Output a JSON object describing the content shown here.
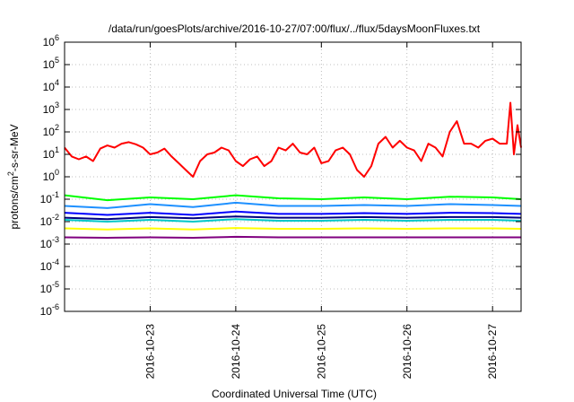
{
  "chart_data": {
    "type": "line",
    "title": "/data/run/goesPlots/archive/2016-10-27/07:00/flux/../flux/5daysMoonFluxes.txt",
    "xlabel": "Coordinated Universal Time (UTC)",
    "ylabel": {
      "prefix": "protons/cm",
      "sup": "2",
      "suffix": "-s-sr-MeV"
    },
    "yscale": "log",
    "ylim": [
      1e-06,
      1000000.0
    ],
    "xlim": [
      "2016-10-22T00:00",
      "2016-10-27T08:00"
    ],
    "grid": true,
    "legend": "none",
    "y_ticks": [
      {
        "value": 1e-06,
        "base": "10",
        "exp": "-6"
      },
      {
        "value": 1e-05,
        "base": "10",
        "exp": "-5"
      },
      {
        "value": 0.0001,
        "base": "10",
        "exp": "-4"
      },
      {
        "value": 0.001,
        "base": "10",
        "exp": "-3"
      },
      {
        "value": 0.01,
        "base": "10",
        "exp": "-2"
      },
      {
        "value": 0.1,
        "base": "10",
        "exp": "-1"
      },
      {
        "value": 1,
        "base": "10",
        "exp": "0"
      },
      {
        "value": 10,
        "base": "10",
        "exp": "1"
      },
      {
        "value": 100,
        "base": "10",
        "exp": "2"
      },
      {
        "value": 1000,
        "base": "10",
        "exp": "3"
      },
      {
        "value": 10000,
        "base": "10",
        "exp": "4"
      },
      {
        "value": 100000,
        "base": "10",
        "exp": "5"
      },
      {
        "value": 1000000,
        "base": "10",
        "exp": "6"
      }
    ],
    "x_ticks": [
      "2016-10-23",
      "2016-10-24",
      "2016-10-25",
      "2016-10-26",
      "2016-10-27"
    ],
    "series": [
      {
        "color": "#ff0000",
        "x": [
          "2016-10-22T00:00",
          "2016-10-22T02:00",
          "2016-10-22T04:00",
          "2016-10-22T06:00",
          "2016-10-22T08:00",
          "2016-10-22T10:00",
          "2016-10-22T12:00",
          "2016-10-22T14:00",
          "2016-10-22T16:00",
          "2016-10-22T18:00",
          "2016-10-22T20:00",
          "2016-10-22T22:00",
          "2016-10-23T00:00",
          "2016-10-23T02:00",
          "2016-10-23T04:00",
          "2016-10-23T06:00",
          "2016-10-23T08:00",
          "2016-10-23T10:00",
          "2016-10-23T12:00",
          "2016-10-23T14:00",
          "2016-10-23T16:00",
          "2016-10-23T18:00",
          "2016-10-23T20:00",
          "2016-10-23T22:00",
          "2016-10-24T00:00",
          "2016-10-24T02:00",
          "2016-10-24T04:00",
          "2016-10-24T06:00",
          "2016-10-24T08:00",
          "2016-10-24T10:00",
          "2016-10-24T12:00",
          "2016-10-24T14:00",
          "2016-10-24T16:00",
          "2016-10-24T18:00",
          "2016-10-24T20:00",
          "2016-10-24T22:00",
          "2016-10-25T00:00",
          "2016-10-25T02:00",
          "2016-10-25T04:00",
          "2016-10-25T06:00",
          "2016-10-25T08:00",
          "2016-10-25T10:00",
          "2016-10-25T12:00",
          "2016-10-25T14:00",
          "2016-10-25T16:00",
          "2016-10-25T18:00",
          "2016-10-25T20:00",
          "2016-10-25T22:00",
          "2016-10-26T00:00",
          "2016-10-26T02:00",
          "2016-10-26T04:00",
          "2016-10-26T06:00",
          "2016-10-26T08:00",
          "2016-10-26T10:00",
          "2016-10-26T12:00",
          "2016-10-26T14:00",
          "2016-10-26T16:00",
          "2016-10-26T18:00",
          "2016-10-26T20:00",
          "2016-10-26T22:00",
          "2016-10-27T00:00",
          "2016-10-27T02:00",
          "2016-10-27T04:00",
          "2016-10-27T05:00",
          "2016-10-27T06:00",
          "2016-10-27T07:00",
          "2016-10-27T08:00"
        ],
        "values": [
          20,
          8,
          6,
          8,
          5,
          18,
          25,
          20,
          30,
          35,
          28,
          20,
          10,
          12,
          18,
          8,
          4,
          2,
          1,
          5,
          10,
          12,
          20,
          15,
          5,
          3,
          6,
          8,
          3,
          5,
          20,
          15,
          30,
          12,
          10,
          20,
          4,
          5,
          15,
          20,
          10,
          2,
          1,
          3,
          30,
          60,
          20,
          40,
          20,
          15,
          5,
          30,
          20,
          8,
          100,
          300,
          30,
          30,
          20,
          40,
          50,
          30,
          30,
          2000,
          10,
          200,
          20
        ]
      },
      {
        "color": "#00ff00",
        "x": [
          "2016-10-22T00:00",
          "2016-10-22T12:00",
          "2016-10-23T00:00",
          "2016-10-23T12:00",
          "2016-10-24T00:00",
          "2016-10-24T12:00",
          "2016-10-25T00:00",
          "2016-10-25T12:00",
          "2016-10-26T00:00",
          "2016-10-26T12:00",
          "2016-10-27T00:00",
          "2016-10-27T08:00"
        ],
        "values": [
          0.15,
          0.09,
          0.12,
          0.1,
          0.15,
          0.11,
          0.1,
          0.12,
          0.1,
          0.13,
          0.12,
          0.1
        ]
      },
      {
        "color": "#1e90ff",
        "x": [
          "2016-10-22T00:00",
          "2016-10-22T12:00",
          "2016-10-23T00:00",
          "2016-10-23T12:00",
          "2016-10-24T00:00",
          "2016-10-24T12:00",
          "2016-10-25T00:00",
          "2016-10-25T12:00",
          "2016-10-26T00:00",
          "2016-10-26T12:00",
          "2016-10-27T00:00",
          "2016-10-27T08:00"
        ],
        "values": [
          0.05,
          0.04,
          0.06,
          0.045,
          0.07,
          0.05,
          0.05,
          0.055,
          0.05,
          0.06,
          0.055,
          0.05
        ]
      },
      {
        "color": "#00c8c8",
        "x": [
          "2016-10-22T00:00",
          "2016-10-22T12:00",
          "2016-10-23T00:00",
          "2016-10-23T12:00",
          "2016-10-24T00:00",
          "2016-10-24T12:00",
          "2016-10-25T00:00",
          "2016-10-25T12:00",
          "2016-10-26T00:00",
          "2016-10-26T12:00",
          "2016-10-27T00:00",
          "2016-10-27T08:00"
        ],
        "values": [
          0.012,
          0.01,
          0.012,
          0.01,
          0.013,
          0.011,
          0.011,
          0.012,
          0.011,
          0.012,
          0.012,
          0.011
        ]
      },
      {
        "color": "#0000ff",
        "x": [
          "2016-10-22T00:00",
          "2016-10-22T12:00",
          "2016-10-23T00:00",
          "2016-10-23T12:00",
          "2016-10-24T00:00",
          "2016-10-24T12:00",
          "2016-10-25T00:00",
          "2016-10-25T12:00",
          "2016-10-26T00:00",
          "2016-10-26T12:00",
          "2016-10-27T00:00",
          "2016-10-27T08:00"
        ],
        "values": [
          0.025,
          0.02,
          0.025,
          0.02,
          0.028,
          0.022,
          0.022,
          0.024,
          0.022,
          0.025,
          0.024,
          0.022
        ]
      },
      {
        "color": "#000080",
        "x": [
          "2016-10-22T00:00",
          "2016-10-22T12:00",
          "2016-10-23T00:00",
          "2016-10-23T12:00",
          "2016-10-24T00:00",
          "2016-10-24T12:00",
          "2016-10-25T00:00",
          "2016-10-25T12:00",
          "2016-10-26T00:00",
          "2016-10-26T12:00",
          "2016-10-27T00:00",
          "2016-10-27T08:00"
        ],
        "values": [
          0.015,
          0.013,
          0.016,
          0.014,
          0.017,
          0.015,
          0.015,
          0.016,
          0.015,
          0.016,
          0.016,
          0.015
        ]
      },
      {
        "color": "#ffff00",
        "x": [
          "2016-10-22T00:00",
          "2016-10-22T12:00",
          "2016-10-23T00:00",
          "2016-10-23T12:00",
          "2016-10-24T00:00",
          "2016-10-24T12:00",
          "2016-10-25T00:00",
          "2016-10-25T12:00",
          "2016-10-26T00:00",
          "2016-10-26T12:00",
          "2016-10-27T00:00",
          "2016-10-27T08:00"
        ],
        "values": [
          0.005,
          0.0045,
          0.005,
          0.0045,
          0.0052,
          0.0048,
          0.0048,
          0.005,
          0.0048,
          0.005,
          0.005,
          0.0048
        ]
      },
      {
        "color": "#800080",
        "x": [
          "2016-10-22T00:00",
          "2016-10-22T12:00",
          "2016-10-23T00:00",
          "2016-10-23T12:00",
          "2016-10-24T00:00",
          "2016-10-24T12:00",
          "2016-10-25T00:00",
          "2016-10-25T12:00",
          "2016-10-26T00:00",
          "2016-10-26T12:00",
          "2016-10-27T00:00",
          "2016-10-27T08:00"
        ],
        "values": [
          0.002,
          0.0019,
          0.002,
          0.0019,
          0.0021,
          0.002,
          0.002,
          0.002,
          0.002,
          0.002,
          0.002,
          0.002
        ]
      }
    ]
  }
}
